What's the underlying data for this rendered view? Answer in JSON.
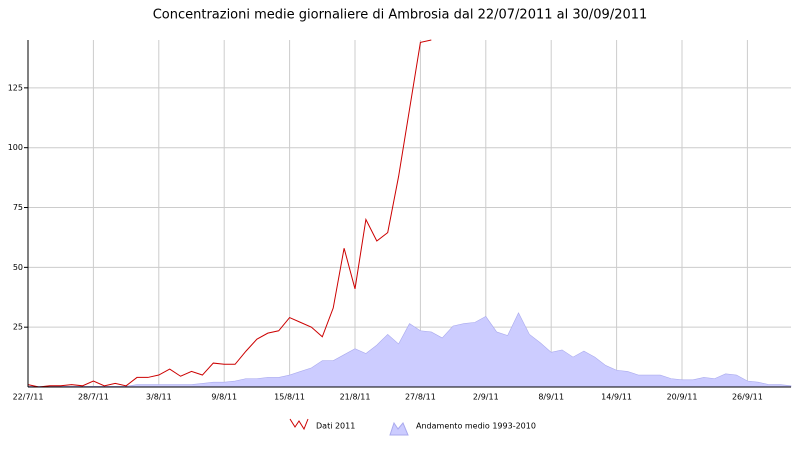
{
  "chart_data": {
    "type": "line-area",
    "title": "Concentrazioni medie giornaliere di Ambrosia dal 22/07/2011 al 30/09/2011",
    "categories": [
      "22/7/11",
      null,
      null,
      null,
      null,
      null,
      "28/7/11",
      null,
      null,
      null,
      null,
      null,
      "3/8/11",
      null,
      null,
      null,
      null,
      null,
      "9/8/11",
      null,
      null,
      null,
      null,
      null,
      "15/8/11",
      null,
      null,
      null,
      null,
      null,
      "21/8/11",
      null,
      null,
      null,
      null,
      null,
      "27/8/11",
      null,
      null,
      null,
      null,
      null,
      "2/9/11",
      null,
      null,
      null,
      null,
      null,
      "8/9/11",
      null,
      null,
      null,
      null,
      null,
      "14/9/11",
      null,
      null,
      null,
      null,
      null,
      "20/9/11",
      null,
      null,
      null,
      null,
      null,
      "26/9/11",
      null,
      null,
      null,
      null
    ],
    "series": [
      {
        "name": "Dati  2011",
        "kind": "line",
        "color": "#cc0000",
        "values": [
          1,
          0,
          0.5,
          0.5,
          1,
          0.5,
          2.5,
          0.5,
          1.5,
          0.5,
          4,
          4,
          5,
          7.5,
          4.5,
          6.5,
          5,
          10,
          9.5,
          9.5,
          15,
          20,
          22.5,
          23.5,
          29,
          27,
          25,
          21,
          33,
          58,
          41,
          70,
          61,
          64.5,
          88,
          116,
          144,
          145,
          null,
          null,
          null,
          null,
          null,
          null,
          null,
          null,
          null,
          null,
          null,
          null,
          null,
          null,
          null,
          null,
          null,
          null,
          null,
          null,
          null,
          null,
          null,
          null,
          null,
          null,
          null,
          null,
          null,
          null,
          null,
          null,
          null
        ]
      },
      {
        "name": "Andamento medio 1993-2010",
        "kind": "area",
        "color": "#ccccff",
        "values": [
          0.3,
          0.3,
          0.3,
          0.3,
          0.3,
          0.3,
          0.3,
          0.3,
          0.3,
          0.3,
          1,
          1,
          1,
          1,
          1,
          1,
          1.5,
          2,
          2,
          2.5,
          3.5,
          3.5,
          4,
          4,
          5,
          6.5,
          8,
          11,
          11,
          13.5,
          16,
          14,
          17.5,
          22,
          18,
          26.5,
          23.5,
          23,
          20.5,
          25.5,
          26.5,
          27,
          29.5,
          23,
          21.5,
          31,
          22,
          18.5,
          14.5,
          15.5,
          12.5,
          15,
          12.5,
          9,
          7,
          6.5,
          5,
          5,
          5,
          3.5,
          3,
          3,
          4,
          3.5,
          5.5,
          5,
          2.5,
          2,
          1,
          1,
          0.5
        ]
      }
    ],
    "ylim": [
      0,
      145
    ],
    "yticks": [
      25,
      50,
      75,
      100,
      125
    ],
    "grid": true
  }
}
